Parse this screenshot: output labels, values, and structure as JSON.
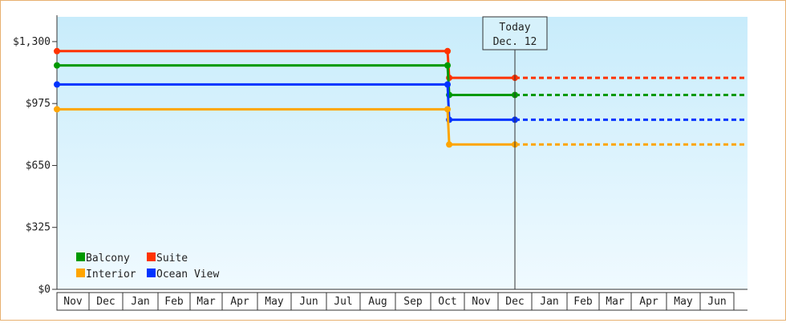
{
  "chart_data": {
    "type": "line",
    "title": "",
    "xlabel": "",
    "ylabel": "",
    "ylim": [
      0,
      1430
    ],
    "y_ticks": [
      {
        "value": 0,
        "label": "$0"
      },
      {
        "value": 325,
        "label": "$325"
      },
      {
        "value": 650,
        "label": "$650"
      },
      {
        "value": 975,
        "label": "$975"
      },
      {
        "value": 1300,
        "label": "$1,300"
      }
    ],
    "months": [
      "Nov",
      "Dec",
      "Jan",
      "Feb",
      "Mar",
      "Apr",
      "May",
      "Jun",
      "Jul",
      "Aug",
      "Sep",
      "Oct",
      "Nov",
      "Dec",
      "Jan",
      "Feb",
      "Mar",
      "Apr",
      "May",
      "Jun"
    ],
    "today": {
      "line1": "Today",
      "line2": "Dec. 12",
      "x": 13.5
    },
    "x_end": 19.95,
    "series": [
      {
        "name": "Suite",
        "color": "#ff3300",
        "points": [
          [
            0,
            1250
          ],
          [
            11.5,
            1250
          ],
          [
            11.55,
            1110
          ],
          [
            13.5,
            1110
          ]
        ]
      },
      {
        "name": "Balcony",
        "color": "#009900",
        "points": [
          [
            0,
            1175
          ],
          [
            11.5,
            1175
          ],
          [
            11.55,
            1020
          ],
          [
            13.5,
            1020
          ]
        ]
      },
      {
        "name": "Ocean View",
        "color": "#0033ff",
        "points": [
          [
            0,
            1075
          ],
          [
            11.5,
            1075
          ],
          [
            11.55,
            890
          ],
          [
            13.5,
            890
          ]
        ]
      },
      {
        "name": "Interior",
        "color": "#ffa500",
        "points": [
          [
            0,
            945
          ],
          [
            11.5,
            945
          ],
          [
            11.55,
            760
          ],
          [
            13.5,
            760
          ]
        ]
      }
    ],
    "legend": [
      {
        "label": "Balcony",
        "color": "#009900"
      },
      {
        "label": "Suite",
        "color": "#ff3300"
      },
      {
        "label": "Interior",
        "color": "#ffa500"
      },
      {
        "label": "Ocean View",
        "color": "#0033ff"
      }
    ],
    "legend_position": "bottom-left",
    "grid": false
  }
}
